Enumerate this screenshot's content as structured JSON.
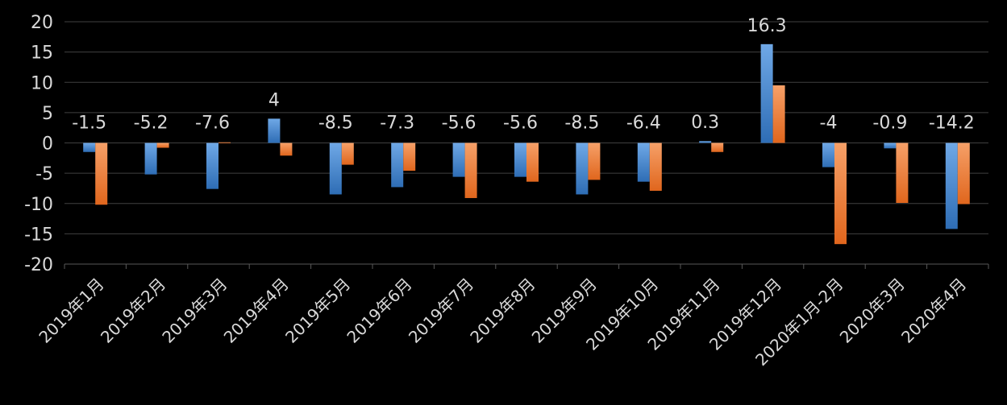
{
  "chart_data": {
    "type": "bar",
    "title": "",
    "xlabel": "",
    "ylabel": "",
    "ylim": [
      -20,
      20
    ],
    "y_ticks": [
      20,
      15,
      10,
      5,
      0,
      -5,
      -10,
      -15,
      -20
    ],
    "grid": true,
    "legend": "none",
    "categories": [
      "2019年1月",
      "2019年2月",
      "2019年3月",
      "2019年4月",
      "2019年5月",
      "2019年6月",
      "2019年7月",
      "2019年8月",
      "2019年9月",
      "2019年10月",
      "2019年11月",
      "2019年12月",
      "2020年1月-2月",
      "2020年3月",
      "2020年4月"
    ],
    "series": [
      {
        "color_top": "#6fa8e6",
        "color_bottom": "#2e6db5",
        "labeled": true,
        "values": [
          -1.5,
          -5.2,
          -7.6,
          4,
          -8.5,
          -7.3,
          -5.6,
          -5.6,
          -8.5,
          -6.4,
          0.3,
          16.3,
          -4,
          -0.9,
          -14.2
        ]
      },
      {
        "color_top": "#f6a068",
        "color_bottom": "#e0661d",
        "labeled": false,
        "values": [
          -10.2,
          -0.8,
          0.1,
          -2.1,
          -3.6,
          -4.6,
          -9.1,
          -6.4,
          -6.1,
          -7.9,
          -1.5,
          9.5,
          -16.7,
          -9.9,
          -10.1
        ]
      }
    ]
  }
}
